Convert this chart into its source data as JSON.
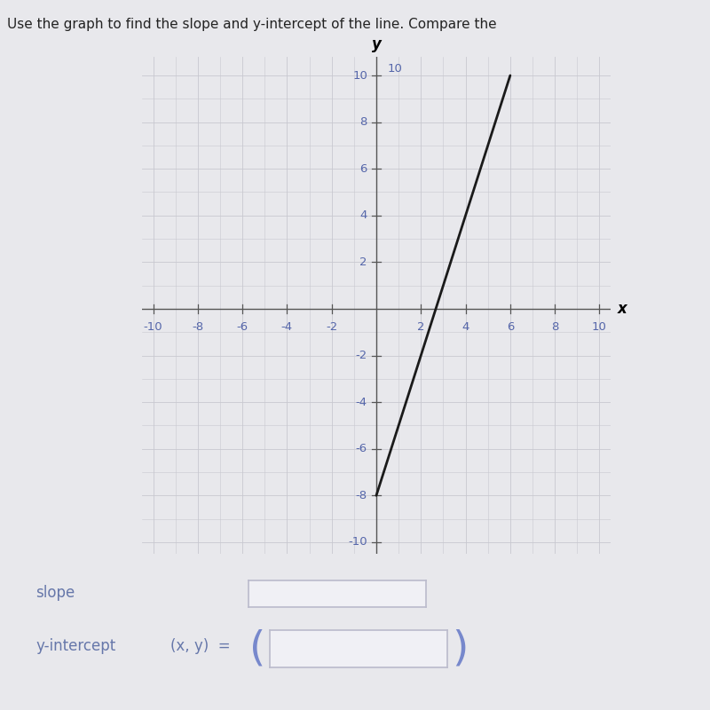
{
  "title": "Use the graph to find the slope and y-intercept of the line. Compare the",
  "slope": 3,
  "y_intercept": -8,
  "x_line_start": 0,
  "x_line_end": 6,
  "xlim": [
    -10.5,
    10.5
  ],
  "ylim": [
    -10.5,
    10.8
  ],
  "xticks": [
    -10,
    -8,
    -6,
    -4,
    -2,
    2,
    4,
    6,
    8,
    10
  ],
  "yticks": [
    -10,
    -8,
    -6,
    -4,
    -2,
    2,
    4,
    6,
    8,
    10
  ],
  "xlabel": "x",
  "ylabel": "y",
  "minor_grid_color": "#c8c8d0",
  "axis_color": "#555555",
  "line_color": "#1a1a1a",
  "bg_color": "#e8e8ec",
  "plot_bg_color": "#e8e8ec",
  "tick_label_color": "#5566aa",
  "label_color": "#6677aa",
  "title_color": "#222222",
  "title_fontsize": 11,
  "tick_fontsize": 9.5,
  "axis_label_fontsize": 12,
  "label_slope": "slope",
  "label_yintercept": "y-intercept",
  "label_xy": "(x, y)  =",
  "box_border_color": "#bbbbcc",
  "paren_color": "#7788cc"
}
